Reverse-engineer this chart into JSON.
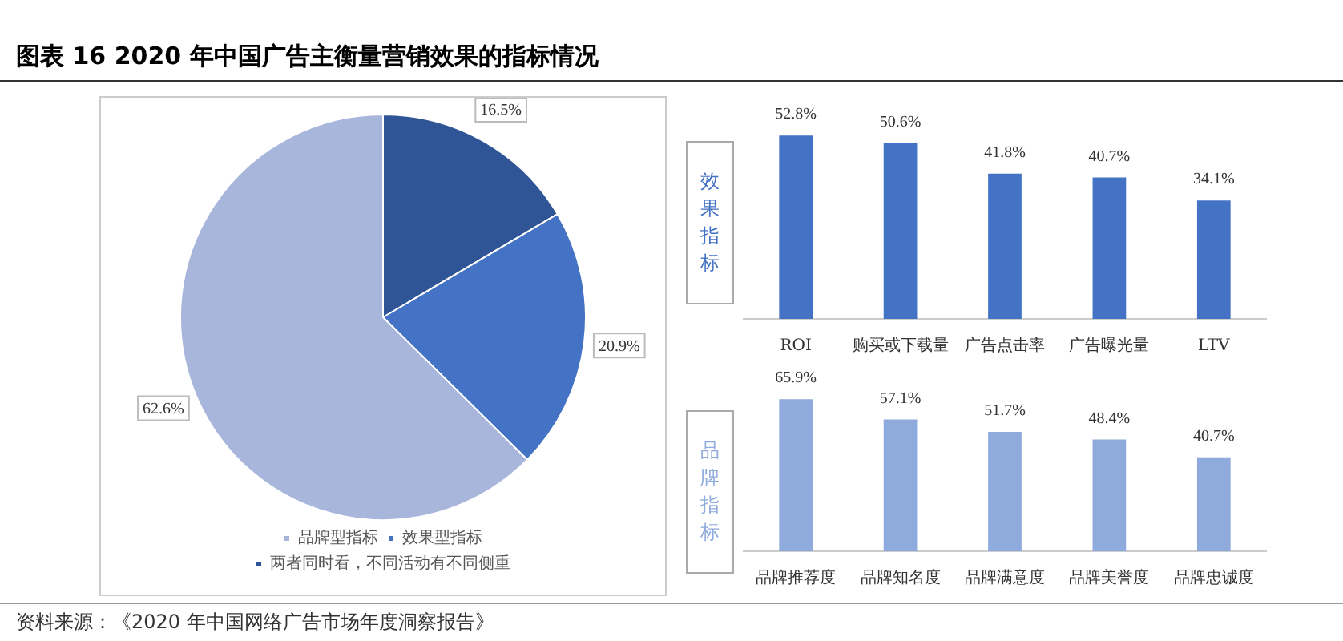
{
  "chart_data": [
    {
      "type": "pie",
      "title": "图表 16 2020 年中国广告主衡量营销效果的指标情况",
      "annotations": [
        "资料来源：《2020 年中国网络广告市场年度洞察报告》"
      ],
      "categories": [
        "两者同时看，不同活动有不同侧重",
        "效果型指标",
        "品牌型指标"
      ],
      "values": [
        16.5,
        20.9,
        62.6
      ],
      "colors": [
        "#2f5597",
        "#4472c4",
        "#a9b6dc"
      ],
      "value_labels": [
        "16.5%",
        "20.9%",
        "62.6%"
      ],
      "legend": "bottom"
    },
    {
      "type": "bar",
      "ylabel": "效果指标",
      "categories": [
        "ROI",
        "购买或下载量",
        "广告点击率",
        "广告曝光量",
        "LTV"
      ],
      "values": [
        52.8,
        50.6,
        41.8,
        40.7,
        34.1
      ],
      "color": "#4472c4",
      "value_labels": [
        "52.8%",
        "50.6%",
        "41.8%",
        "40.7%",
        "34.1%"
      ]
    },
    {
      "type": "bar",
      "ylabel": "品牌指标",
      "categories": [
        "品牌推荐度",
        "品牌知名度",
        "品牌满意度",
        "品牌美誉度",
        "品牌忠诚度"
      ],
      "values": [
        65.9,
        57.1,
        51.7,
        48.4,
        40.7
      ],
      "color": "#8faadc",
      "value_labels": [
        "65.9%",
        "57.1%",
        "51.7%",
        "48.4%",
        "40.7%"
      ]
    }
  ]
}
